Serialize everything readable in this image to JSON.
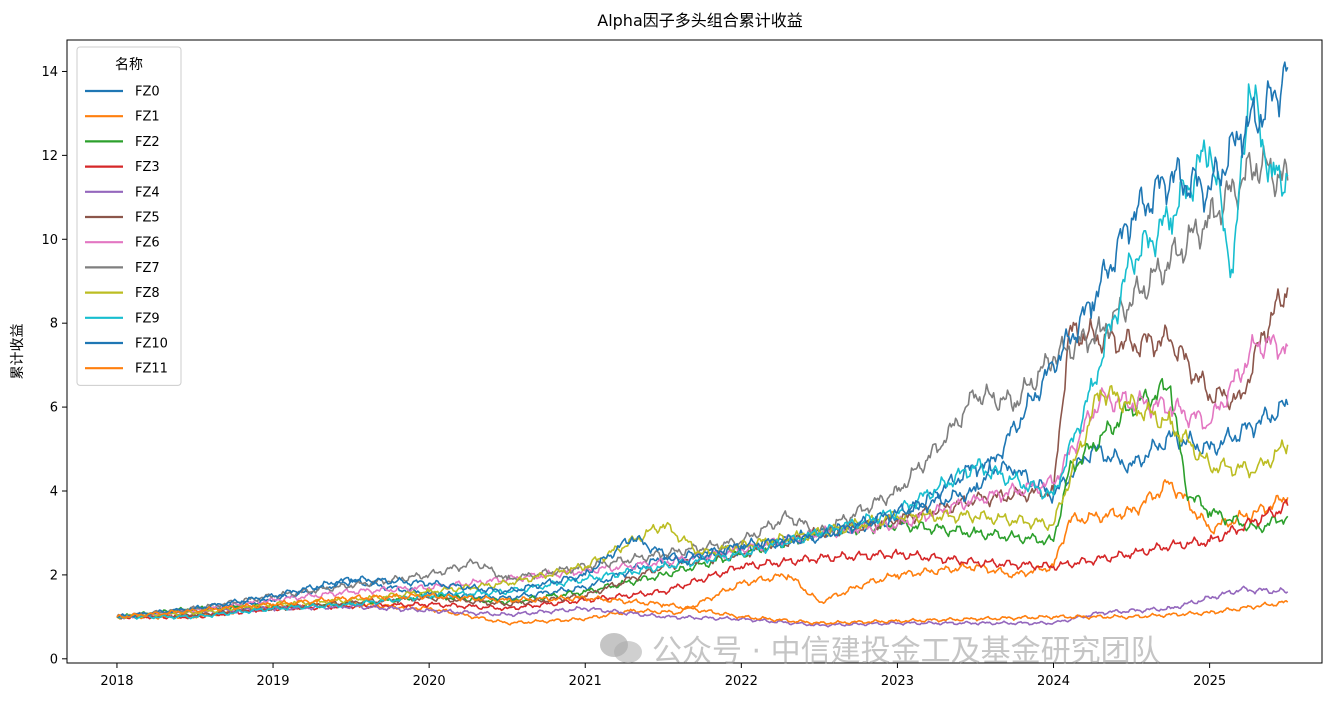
{
  "chart_data": {
    "type": "line",
    "title": "Alpha因子多头组合累计收益",
    "xlabel": "",
    "ylabel": "累计收益",
    "xlim": [
      2017.68,
      2025.72
    ],
    "ylim": [
      -0.1,
      14.75
    ],
    "x_ticks": [
      2018,
      2019,
      2020,
      2021,
      2022,
      2023,
      2024,
      2025
    ],
    "x_tick_labels": [
      "2018",
      "2019",
      "2020",
      "2021",
      "2022",
      "2023",
      "2024",
      "2025"
    ],
    "y_ticks": [
      0,
      2,
      4,
      6,
      8,
      10,
      12,
      14
    ],
    "y_tick_labels": [
      "0",
      "2",
      "4",
      "6",
      "8",
      "10",
      "12",
      "14"
    ],
    "grid": false,
    "legend": {
      "title": "名称",
      "position": "top-left"
    },
    "series": [
      {
        "name": "FZ0",
        "color": "#1f77b4",
        "points": [
          [
            2018.0,
            1.0
          ],
          [
            2018.5,
            1.15
          ],
          [
            2019.0,
            1.4
          ],
          [
            2019.5,
            1.85
          ],
          [
            2020.0,
            1.55
          ],
          [
            2020.5,
            1.45
          ],
          [
            2021.0,
            1.7
          ],
          [
            2021.5,
            2.4
          ],
          [
            2022.0,
            2.6
          ],
          [
            2022.5,
            3.0
          ],
          [
            2023.0,
            3.3
          ],
          [
            2023.5,
            4.6
          ],
          [
            2023.75,
            4.5
          ],
          [
            2024.0,
            3.9
          ],
          [
            2024.25,
            5.0
          ],
          [
            2024.5,
            4.6
          ],
          [
            2024.75,
            5.3
          ],
          [
            2025.0,
            5.0
          ],
          [
            2025.3,
            5.6
          ],
          [
            2025.5,
            6.05
          ]
        ]
      },
      {
        "name": "FZ1",
        "color": "#ff7f0e",
        "points": [
          [
            2018.0,
            1.0
          ],
          [
            2018.5,
            1.0
          ],
          [
            2019.0,
            1.25
          ],
          [
            2019.5,
            1.3
          ],
          [
            2020.0,
            1.2
          ],
          [
            2020.5,
            0.85
          ],
          [
            2021.0,
            0.95
          ],
          [
            2021.3,
            1.15
          ],
          [
            2021.6,
            1.1
          ],
          [
            2022.0,
            1.8
          ],
          [
            2022.3,
            2.0
          ],
          [
            2022.5,
            1.35
          ],
          [
            2022.8,
            1.8
          ],
          [
            2023.0,
            2.0
          ],
          [
            2023.5,
            2.2
          ],
          [
            2023.75,
            2.0
          ],
          [
            2024.0,
            2.2
          ],
          [
            2024.1,
            3.3
          ],
          [
            2024.5,
            3.5
          ],
          [
            2024.75,
            4.2
          ],
          [
            2025.0,
            3.1
          ],
          [
            2025.3,
            3.5
          ],
          [
            2025.5,
            3.85
          ]
        ]
      },
      {
        "name": "FZ2",
        "color": "#2ca02c",
        "points": [
          [
            2018.0,
            1.0
          ],
          [
            2018.5,
            1.2
          ],
          [
            2019.0,
            1.25
          ],
          [
            2019.5,
            1.3
          ],
          [
            2020.0,
            1.5
          ],
          [
            2020.5,
            1.35
          ],
          [
            2021.0,
            1.6
          ],
          [
            2021.5,
            2.0
          ],
          [
            2022.0,
            2.5
          ],
          [
            2022.5,
            3.0
          ],
          [
            2023.0,
            3.2
          ],
          [
            2023.5,
            3.0
          ],
          [
            2023.75,
            2.9
          ],
          [
            2024.0,
            2.8
          ],
          [
            2024.1,
            4.5
          ],
          [
            2024.5,
            6.0
          ],
          [
            2024.75,
            6.5
          ],
          [
            2024.85,
            4.0
          ],
          [
            2025.0,
            3.5
          ],
          [
            2025.3,
            3.1
          ],
          [
            2025.5,
            3.4
          ]
        ]
      },
      {
        "name": "FZ3",
        "color": "#d62728",
        "points": [
          [
            2018.0,
            1.0
          ],
          [
            2018.5,
            1.0
          ],
          [
            2019.0,
            1.2
          ],
          [
            2019.5,
            1.25
          ],
          [
            2020.0,
            1.3
          ],
          [
            2020.5,
            1.2
          ],
          [
            2021.0,
            1.4
          ],
          [
            2021.5,
            1.6
          ],
          [
            2022.0,
            2.2
          ],
          [
            2022.5,
            2.4
          ],
          [
            2023.0,
            2.5
          ],
          [
            2023.5,
            2.3
          ],
          [
            2024.0,
            2.2
          ],
          [
            2024.5,
            2.5
          ],
          [
            2024.75,
            2.7
          ],
          [
            2025.0,
            2.8
          ],
          [
            2025.3,
            3.3
          ],
          [
            2025.5,
            3.65
          ]
        ]
      },
      {
        "name": "FZ4",
        "color": "#9467bd",
        "points": [
          [
            2018.0,
            1.0
          ],
          [
            2018.5,
            1.1
          ],
          [
            2019.0,
            1.2
          ],
          [
            2019.5,
            1.25
          ],
          [
            2020.0,
            1.15
          ],
          [
            2020.5,
            1.05
          ],
          [
            2021.0,
            1.2
          ],
          [
            2021.5,
            1.0
          ],
          [
            2022.0,
            0.95
          ],
          [
            2022.5,
            0.8
          ],
          [
            2023.0,
            0.85
          ],
          [
            2023.5,
            0.85
          ],
          [
            2024.0,
            0.85
          ],
          [
            2024.3,
            1.1
          ],
          [
            2024.75,
            1.2
          ],
          [
            2025.0,
            1.45
          ],
          [
            2025.2,
            1.65
          ],
          [
            2025.5,
            1.6
          ]
        ]
      },
      {
        "name": "FZ5",
        "color": "#8c564b",
        "points": [
          [
            2018.0,
            1.0
          ],
          [
            2018.5,
            1.05
          ],
          [
            2019.0,
            1.2
          ],
          [
            2019.5,
            1.35
          ],
          [
            2020.0,
            1.45
          ],
          [
            2020.5,
            1.3
          ],
          [
            2021.0,
            1.5
          ],
          [
            2021.5,
            2.2
          ],
          [
            2022.0,
            2.5
          ],
          [
            2022.5,
            3.0
          ],
          [
            2023.0,
            3.3
          ],
          [
            2023.5,
            3.8
          ],
          [
            2024.0,
            4.0
          ],
          [
            2024.1,
            7.8
          ],
          [
            2024.5,
            7.5
          ],
          [
            2024.75,
            7.6
          ],
          [
            2025.0,
            6.3
          ],
          [
            2025.2,
            6.2
          ],
          [
            2025.35,
            7.8
          ],
          [
            2025.5,
            8.85
          ]
        ]
      },
      {
        "name": "FZ6",
        "color": "#e377c2",
        "points": [
          [
            2018.0,
            1.0
          ],
          [
            2018.5,
            1.15
          ],
          [
            2019.0,
            1.4
          ],
          [
            2019.5,
            1.6
          ],
          [
            2020.0,
            1.7
          ],
          [
            2020.5,
            1.9
          ],
          [
            2021.0,
            2.1
          ],
          [
            2021.5,
            2.3
          ],
          [
            2022.0,
            2.6
          ],
          [
            2022.5,
            3.0
          ],
          [
            2023.0,
            3.2
          ],
          [
            2023.5,
            3.8
          ],
          [
            2024.0,
            4.2
          ],
          [
            2024.3,
            6.2
          ],
          [
            2024.75,
            6.0
          ],
          [
            2025.0,
            5.6
          ],
          [
            2025.3,
            7.5
          ],
          [
            2025.5,
            7.45
          ]
        ]
      },
      {
        "name": "FZ7",
        "color": "#7f7f7f",
        "points": [
          [
            2018.0,
            1.0
          ],
          [
            2018.5,
            1.2
          ],
          [
            2019.0,
            1.5
          ],
          [
            2019.5,
            1.75
          ],
          [
            2020.0,
            2.0
          ],
          [
            2020.3,
            2.3
          ],
          [
            2020.5,
            1.9
          ],
          [
            2021.0,
            2.2
          ],
          [
            2021.5,
            2.5
          ],
          [
            2022.0,
            2.8
          ],
          [
            2022.3,
            3.4
          ],
          [
            2022.5,
            3.0
          ],
          [
            2023.0,
            4.0
          ],
          [
            2023.3,
            5.2
          ],
          [
            2023.5,
            6.3
          ],
          [
            2023.75,
            6.1
          ],
          [
            2024.0,
            7.2
          ],
          [
            2024.3,
            7.8
          ],
          [
            2024.75,
            9.5
          ],
          [
            2025.0,
            10.5
          ],
          [
            2025.3,
            11.8
          ],
          [
            2025.5,
            11.4
          ]
        ]
      },
      {
        "name": "FZ8",
        "color": "#bcbd22",
        "points": [
          [
            2018.0,
            1.0
          ],
          [
            2018.5,
            1.1
          ],
          [
            2019.0,
            1.3
          ],
          [
            2019.5,
            1.4
          ],
          [
            2020.0,
            1.6
          ],
          [
            2020.5,
            1.8
          ],
          [
            2021.0,
            2.2
          ],
          [
            2021.5,
            3.2
          ],
          [
            2021.75,
            2.5
          ],
          [
            2022.0,
            2.7
          ],
          [
            2022.5,
            3.0
          ],
          [
            2023.0,
            3.4
          ],
          [
            2023.5,
            3.4
          ],
          [
            2024.0,
            3.2
          ],
          [
            2024.3,
            6.4
          ],
          [
            2024.75,
            5.6
          ],
          [
            2025.0,
            4.6
          ],
          [
            2025.3,
            4.5
          ],
          [
            2025.5,
            5.1
          ]
        ]
      },
      {
        "name": "FZ9",
        "color": "#17becf",
        "points": [
          [
            2018.0,
            1.0
          ],
          [
            2018.5,
            1.0
          ],
          [
            2019.0,
            1.2
          ],
          [
            2019.5,
            1.3
          ],
          [
            2020.0,
            1.5
          ],
          [
            2020.5,
            1.6
          ],
          [
            2021.0,
            1.9
          ],
          [
            2021.5,
            2.2
          ],
          [
            2022.0,
            2.5
          ],
          [
            2022.5,
            3.0
          ],
          [
            2023.0,
            3.5
          ],
          [
            2023.5,
            4.6
          ],
          [
            2024.0,
            3.9
          ],
          [
            2024.25,
            6.5
          ],
          [
            2024.5,
            9.5
          ],
          [
            2024.75,
            10.5
          ],
          [
            2025.0,
            12.2
          ],
          [
            2025.15,
            9.2
          ],
          [
            2025.25,
            13.7
          ],
          [
            2025.4,
            11.5
          ],
          [
            2025.5,
            11.5
          ]
        ]
      },
      {
        "name": "FZ10",
        "color": "#1f77b4",
        "points": [
          [
            2018.0,
            1.0
          ],
          [
            2018.5,
            1.2
          ],
          [
            2019.0,
            1.5
          ],
          [
            2019.5,
            1.9
          ],
          [
            2020.0,
            1.8
          ],
          [
            2020.5,
            1.6
          ],
          [
            2021.0,
            2.0
          ],
          [
            2021.3,
            2.9
          ],
          [
            2021.6,
            2.3
          ],
          [
            2022.0,
            2.7
          ],
          [
            2022.5,
            2.9
          ],
          [
            2023.0,
            3.5
          ],
          [
            2023.5,
            4.0
          ],
          [
            2024.0,
            7.0
          ],
          [
            2024.25,
            8.5
          ],
          [
            2024.5,
            10.5
          ],
          [
            2024.75,
            11.5
          ],
          [
            2025.0,
            11.2
          ],
          [
            2025.2,
            12.5
          ],
          [
            2025.4,
            13.3
          ],
          [
            2025.5,
            14.1
          ]
        ]
      },
      {
        "name": "FZ11",
        "color": "#ff7f0e",
        "points": [
          [
            2018.0,
            1.0
          ],
          [
            2018.5,
            1.15
          ],
          [
            2019.0,
            1.3
          ],
          [
            2019.5,
            1.45
          ],
          [
            2020.0,
            1.5
          ],
          [
            2020.5,
            1.4
          ],
          [
            2021.0,
            1.45
          ],
          [
            2021.5,
            1.3
          ],
          [
            2022.0,
            1.0
          ],
          [
            2022.5,
            0.85
          ],
          [
            2023.0,
            0.9
          ],
          [
            2023.5,
            0.95
          ],
          [
            2024.0,
            1.0
          ],
          [
            2024.5,
            1.0
          ],
          [
            2024.75,
            1.05
          ],
          [
            2025.0,
            1.1
          ],
          [
            2025.3,
            1.25
          ],
          [
            2025.5,
            1.35
          ]
        ]
      }
    ]
  },
  "watermark": {
    "text": "公众号 · 中信建投金工及基金研究团队",
    "icon": "wechat-icon"
  }
}
